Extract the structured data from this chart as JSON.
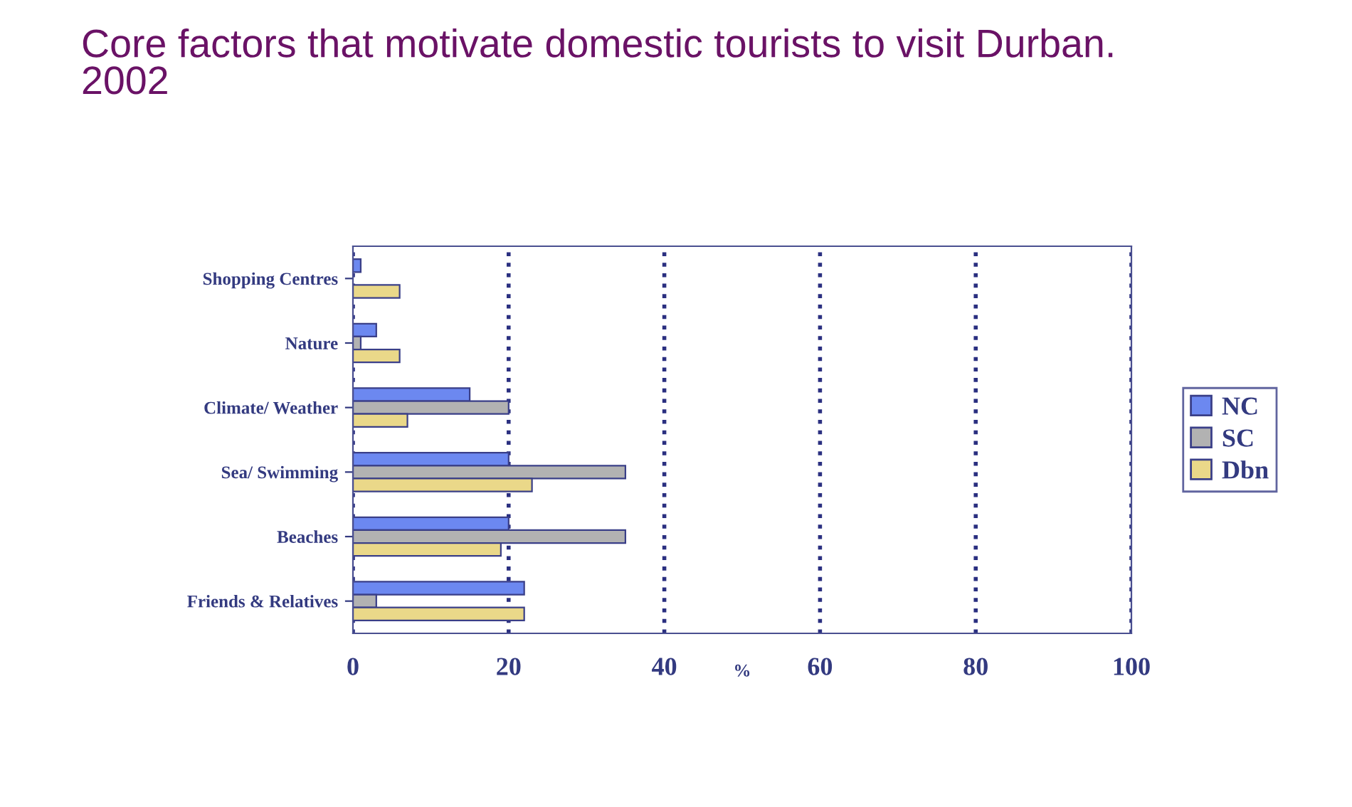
{
  "chart_data": {
    "type": "bar",
    "orientation": "horizontal",
    "title": "Core factors that motivate domestic tourists to visit Durban.\n2002",
    "xlabel": "%",
    "categories": [
      "Shopping Centres",
      "Nature",
      "Climate/ Weather",
      "Sea/ Swimming",
      "Beaches",
      "Friends & Relatives"
    ],
    "series": [
      {
        "name": "NC",
        "color": "#6c88f0",
        "values": [
          1,
          3,
          15,
          20,
          20,
          22
        ]
      },
      {
        "name": "SC",
        "color": "#b2b2b2",
        "values": [
          null,
          1,
          20,
          35,
          35,
          3
        ]
      },
      {
        "name": "Dbn",
        "color": "#ead889",
        "values": [
          6,
          6,
          7,
          23,
          19,
          22
        ]
      }
    ],
    "xlim": [
      0,
      100
    ],
    "xticks": [
      0,
      20,
      40,
      60,
      80,
      100
    ],
    "grid": "x",
    "legend": "right"
  }
}
